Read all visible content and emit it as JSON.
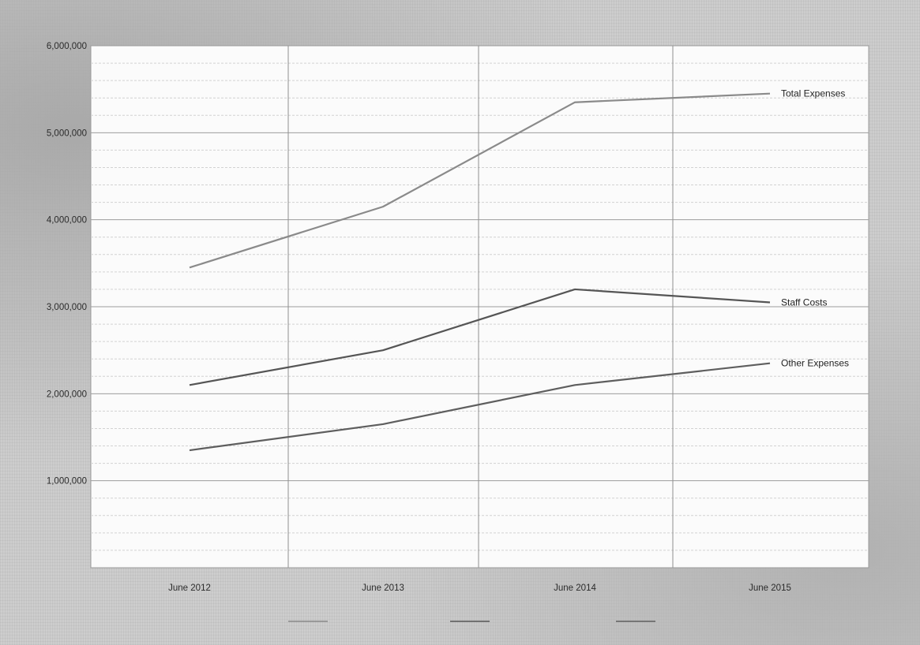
{
  "chart_data": {
    "type": "line",
    "categories": [
      "June 2012",
      "June 2013",
      "June 2014",
      "June 2015"
    ],
    "ylim": [
      0,
      6000000
    ],
    "y_ticks": [
      1000000,
      2000000,
      3000000,
      4000000,
      5000000,
      6000000
    ],
    "y_tick_labels": [
      "1,000,000",
      "2,000,000",
      "3,000,000",
      "4,000,000",
      "5,000,000",
      "6,000,000"
    ],
    "grid": true,
    "series": [
      {
        "name": "Total Expenses",
        "values": [
          3450000,
          4150000,
          5350000,
          5450000
        ],
        "color": "#8a8a8a"
      },
      {
        "name": "Staff Costs",
        "values": [
          2100000,
          2500000,
          3200000,
          3050000
        ],
        "color": "#555555"
      },
      {
        "name": "Other Expenses",
        "values": [
          1350000,
          1650000,
          2100000,
          2350000
        ],
        "color": "#5e5e5e"
      }
    ]
  }
}
